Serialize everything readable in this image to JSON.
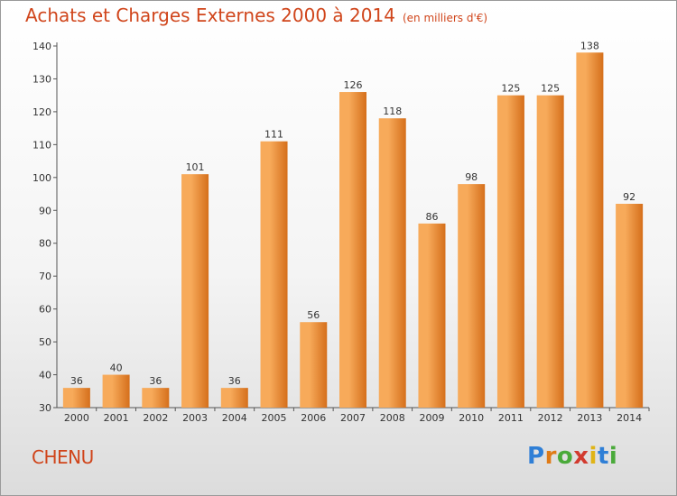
{
  "title": "Achats et Charges Externes 2000 à 2014",
  "unit": "(en milliers d'€)",
  "city": "CHENU",
  "logo": "Proxiti",
  "colors": {
    "title": "#d0451b",
    "bar_light": "#f7aa5a",
    "bar_dark": "#d56f1b"
  },
  "chart_data": {
    "type": "bar",
    "categories": [
      "2000",
      "2001",
      "2002",
      "2003",
      "2004",
      "2005",
      "2006",
      "2007",
      "2008",
      "2009",
      "2010",
      "2011",
      "2012",
      "2013",
      "2014"
    ],
    "values": [
      36,
      40,
      36,
      101,
      36,
      111,
      56,
      126,
      118,
      86,
      98,
      125,
      125,
      138,
      92
    ],
    "ylim": [
      30,
      140
    ],
    "yticks": [
      30,
      40,
      50,
      60,
      70,
      80,
      90,
      100,
      110,
      120,
      130,
      140
    ],
    "grid": false
  }
}
